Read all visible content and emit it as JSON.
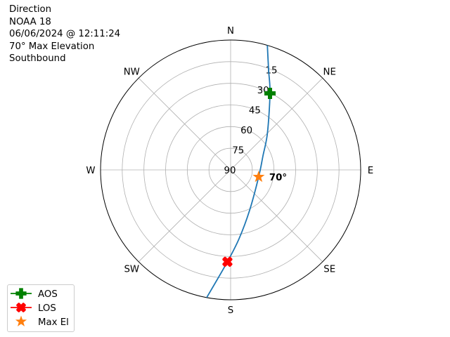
{
  "title_lines": [
    "Direction",
    "NOAA 18",
    "06/06/2024 @ 12:11:24",
    "70° Max Elevation",
    "Southbound"
  ],
  "chart_data": {
    "type": "polar-line",
    "direction_labels": [
      "N",
      "NE",
      "E",
      "SE",
      "S",
      "SW",
      "W",
      "NW"
    ],
    "radial_ticks": [
      90,
      75,
      60,
      45,
      30,
      15
    ],
    "radial_range": [
      90,
      0
    ],
    "grid": true,
    "track_color": "#1f77b4",
    "track": [
      {
        "az": 16.4,
        "el": 0
      },
      {
        "az": 20.8,
        "el": 16
      },
      {
        "az": 27.2,
        "el": 30.4
      },
      {
        "az": 45,
        "el": 54
      },
      {
        "az": 66.5,
        "el": 65.6
      },
      {
        "az": 104,
        "el": 70
      },
      {
        "az": 155,
        "el": 59
      },
      {
        "az": 173,
        "el": 42
      },
      {
        "az": 182,
        "el": 26.3
      },
      {
        "az": 190.6,
        "el": 0
      }
    ],
    "markers": [
      {
        "name": "AOS",
        "az": 27.2,
        "el": 30.4,
        "color": "#008000",
        "shape": "plus"
      },
      {
        "name": "LOS",
        "az": 182,
        "el": 26.3,
        "color": "#ff0000",
        "shape": "x"
      },
      {
        "name": "Max El",
        "az": 104,
        "el": 70,
        "color": "#ff7f0e",
        "shape": "star"
      }
    ],
    "max_label": "70°",
    "legend_placement": "lower-left"
  }
}
